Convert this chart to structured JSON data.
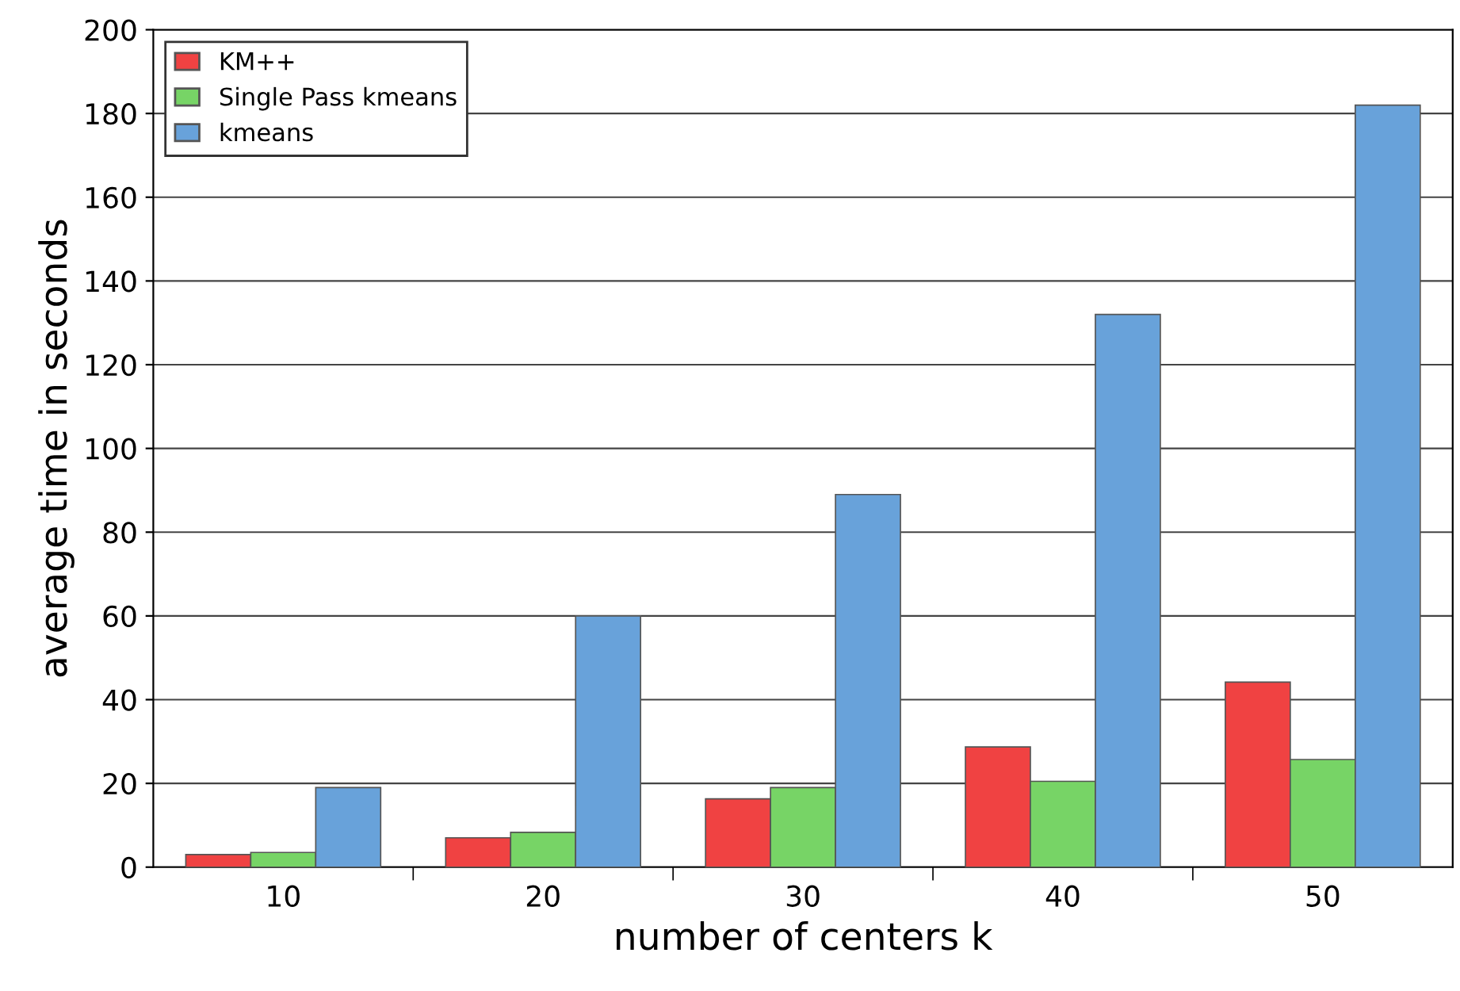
{
  "chart_data": {
    "type": "bar",
    "xlabel": "number of centers k",
    "ylabel": "average time in seconds",
    "categories": [
      "10",
      "20",
      "30",
      "40",
      "50"
    ],
    "series": [
      {
        "name": "KM++",
        "color": "#f04242",
        "values": [
          3,
          7,
          16.3,
          28.7,
          44.2
        ]
      },
      {
        "name": "Single Pass kmeans",
        "color": "#77d466",
        "values": [
          3.5,
          8.3,
          19,
          20.5,
          25.7
        ]
      },
      {
        "name": "kmeans",
        "color": "#68a2da",
        "values": [
          19,
          60,
          89,
          132,
          182
        ]
      }
    ],
    "ylim": [
      0,
      200
    ],
    "yticks": [
      0,
      20,
      40,
      60,
      80,
      100,
      120,
      140,
      160,
      180,
      200
    ],
    "grid": "y",
    "legend": "top left"
  }
}
